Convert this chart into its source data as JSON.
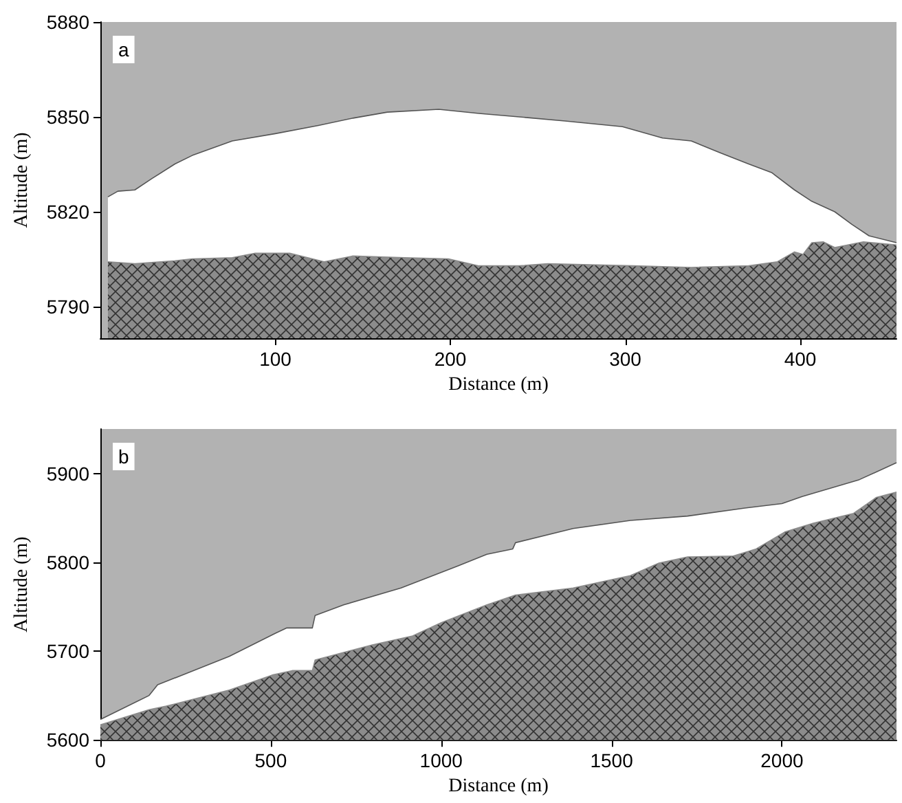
{
  "chart_data": [
    {
      "type": "area",
      "xlabel": "Distance (m)",
      "ylabel": "Altitude (m)",
      "annotations": [
        "a"
      ],
      "xlim": [
        0,
        455
      ],
      "xticks": [
        100,
        200,
        300,
        400
      ],
      "ylim": [
        5780,
        5880
      ],
      "yticks": [
        5790,
        5820,
        5850,
        5880
      ],
      "grid": false,
      "series": [
        {
          "color": "#ffffff",
          "x": [
            4.3,
            10,
            19.7,
            29.5,
            42.6,
            52.5,
            75.4,
            100,
            124.6,
            144.3,
            164,
            193.4,
            216.4,
            239.3,
            265.6,
            298.4,
            321.3,
            337.7,
            354,
            370.5,
            383.6,
            396.7,
            406.6,
            419.7,
            429.5,
            439.3,
            455
          ],
          "values": [
            5824.7,
            5826.5,
            5826.9,
            5830.5,
            5835.1,
            5837.8,
            5842.4,
            5844.7,
            5847.3,
            5849.6,
            5851.5,
            5852.4,
            5851.1,
            5850,
            5848.7,
            5846.9,
            5843.3,
            5842.4,
            5838.7,
            5835.1,
            5832.4,
            5826.9,
            5823.3,
            5820,
            5816,
            5812.4,
            5810.2
          ]
        },
        {
          "color": "#8c8c8c",
          "x": [
            4.3,
            19.7,
            42.6,
            52.5,
            75.4,
            88.5,
            108.2,
            127.9,
            144.3,
            173.8,
            198.9,
            216.4,
            239.3,
            255.7,
            304.9,
            337.7,
            370.5,
            386.9,
            396.7,
            401.6,
            406.6,
            413.1,
            419.7,
            436.1,
            455
          ],
          "values": [
            5804.2,
            5803.6,
            5804.5,
            5805.1,
            5805.5,
            5806.9,
            5806.9,
            5804.2,
            5806,
            5805.5,
            5805.1,
            5802.9,
            5802.9,
            5803.6,
            5802.9,
            5802.4,
            5802.9,
            5804.2,
            5807.3,
            5806.5,
            5810.2,
            5810.5,
            5808.7,
            5810.5,
            5809.5
          ]
        }
      ]
    },
    {
      "type": "area",
      "xlabel": "Distance (m)",
      "ylabel": "Altitude (m)",
      "annotations": [
        "b"
      ],
      "xlim": [
        0,
        2336
      ],
      "xticks": [
        0,
        500,
        1000,
        1500,
        2000
      ],
      "ylim": [
        5600,
        5950
      ],
      "yticks": [
        5600,
        5700,
        5800,
        5900
      ],
      "grid": false,
      "series": [
        {
          "color": "#ffffff",
          "x": [
            0,
            143,
            168,
            378,
            513,
            546,
            622,
            630,
            714,
            882,
            1050,
            1134,
            1210,
            1218,
            1387,
            1555,
            1723,
            1891,
            2000,
            2059,
            2227,
            2336
          ],
          "values": [
            5623,
            5650,
            5662,
            5694,
            5720,
            5726,
            5726,
            5740,
            5752,
            5771,
            5796,
            5809,
            5815,
            5822,
            5838,
            5847,
            5852,
            5861,
            5866,
            5874,
            5893,
            5912
          ]
        },
        {
          "color": "#8c8c8c",
          "x": [
            0,
            143,
            193,
            378,
            504,
            563,
            622,
            630,
            798,
            916,
            1000,
            1134,
            1218,
            1387,
            1555,
            1639,
            1723,
            1857,
            1924,
            2008,
            2092,
            2210,
            2277,
            2336
          ],
          "values": [
            5617,
            5634,
            5638,
            5656,
            5673,
            5678,
            5678,
            5690,
            5707,
            5717,
            5732,
            5752,
            5763,
            5771,
            5785,
            5799,
            5806,
            5807,
            5815,
            5834,
            5844,
            5855,
            5873,
            5879
          ]
        }
      ]
    }
  ]
}
